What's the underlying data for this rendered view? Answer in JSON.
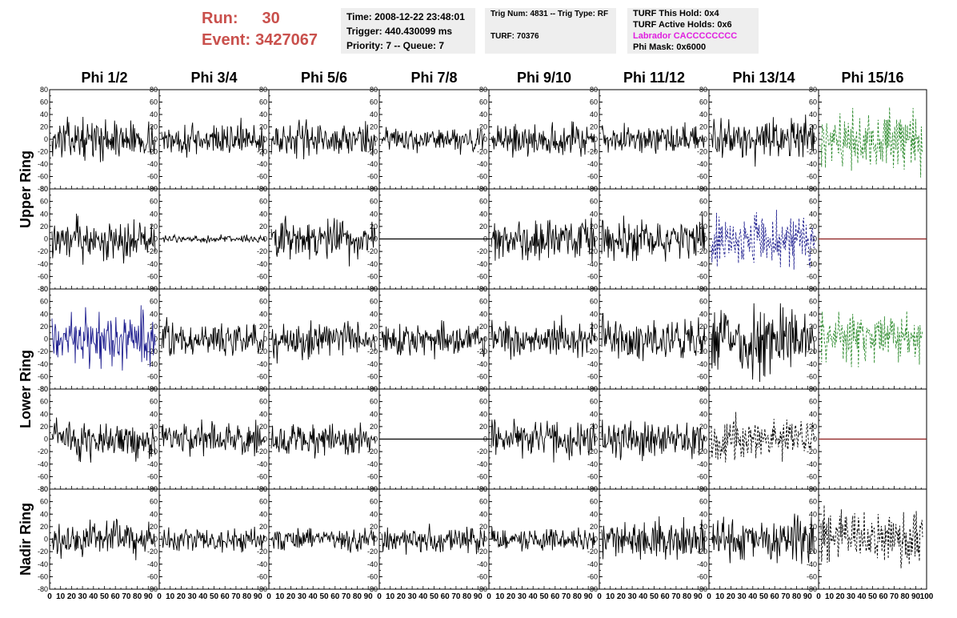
{
  "header": {
    "run_label": "Run:",
    "run_value": "30",
    "event_label": "Event:",
    "event_value": "3427067",
    "info1": [
      "Time: 2008-12-22 23:48:01",
      "Trigger: 440.430099 ms",
      "Priority: 7 -- Queue: 7"
    ],
    "info2": [
      "Trig Num: 4831 -- Trig Type: RF",
      "TURF: 70376"
    ],
    "info3": [
      "TURF This Hold: 0x4",
      "TURF Active Holds: 0x6",
      "Labrador CACCCCCCCC",
      "Phi Mask: 0x6000"
    ],
    "colors": {
      "run": "#c9504c",
      "labrador": "#e020e0"
    }
  },
  "chart_data": {
    "type": "line",
    "columns": [
      "Phi 1/2",
      "Phi 3/4",
      "Phi 5/6",
      "Phi 7/8",
      "Phi 9/10",
      "Phi 11/12",
      "Phi 13/14",
      "Phi 15/16"
    ],
    "ring_labels": [
      "Upper Ring",
      "Lower Ring",
      "Nadir Ring"
    ],
    "ylim": [
      -80,
      80
    ],
    "yticks": [
      "80",
      "60",
      "40",
      "20",
      "0",
      "-20",
      "-40",
      "-60",
      "-80"
    ],
    "xlim": [
      0,
      100
    ],
    "xticks": [
      "0",
      "10",
      "20",
      "30",
      "40",
      "50",
      "60",
      "70",
      "80",
      "90",
      "100"
    ],
    "colors": {
      "normal": "#000000",
      "blue": "#1f1f8f",
      "green": "#2e8b2e",
      "flat_red": "#8b1a1a"
    },
    "series": [
      {
        "row": 0,
        "col": 0,
        "style": "normal",
        "amplitude": 16
      },
      {
        "row": 0,
        "col": 1,
        "style": "normal",
        "amplitude": 14
      },
      {
        "row": 0,
        "col": 2,
        "style": "normal",
        "amplitude": 14
      },
      {
        "row": 0,
        "col": 3,
        "style": "normal",
        "amplitude": 10
      },
      {
        "row": 0,
        "col": 4,
        "style": "normal",
        "amplitude": 14
      },
      {
        "row": 0,
        "col": 5,
        "style": "normal",
        "amplitude": 12
      },
      {
        "row": 0,
        "col": 6,
        "style": "normal",
        "amplitude": 18
      },
      {
        "row": 0,
        "col": 7,
        "style": "green",
        "amplitude": 26
      },
      {
        "row": 1,
        "col": 0,
        "style": "normal",
        "amplitude": 18
      },
      {
        "row": 1,
        "col": 1,
        "style": "normal",
        "amplitude": 3
      },
      {
        "row": 1,
        "col": 2,
        "style": "normal",
        "amplitude": 18
      },
      {
        "row": 1,
        "col": 3,
        "style": "flat",
        "amplitude": 0
      },
      {
        "row": 1,
        "col": 4,
        "style": "normal",
        "amplitude": 18
      },
      {
        "row": 1,
        "col": 5,
        "style": "normal",
        "amplitude": 16
      },
      {
        "row": 1,
        "col": 6,
        "style": "blue_dash",
        "amplitude": 22
      },
      {
        "row": 1,
        "col": 7,
        "style": "flat_red",
        "amplitude": 0
      },
      {
        "row": 2,
        "col": 0,
        "style": "blue",
        "amplitude": 22
      },
      {
        "row": 2,
        "col": 1,
        "style": "normal",
        "amplitude": 14
      },
      {
        "row": 2,
        "col": 2,
        "style": "normal",
        "amplitude": 16
      },
      {
        "row": 2,
        "col": 3,
        "style": "normal",
        "amplitude": 14
      },
      {
        "row": 2,
        "col": 4,
        "style": "normal",
        "amplitude": 16
      },
      {
        "row": 2,
        "col": 5,
        "style": "normal",
        "amplitude": 18
      },
      {
        "row": 2,
        "col": 6,
        "style": "normal",
        "amplitude": 28
      },
      {
        "row": 2,
        "col": 7,
        "style": "green",
        "amplitude": 22
      },
      {
        "row": 3,
        "col": 0,
        "style": "normal",
        "amplitude": 16
      },
      {
        "row": 3,
        "col": 1,
        "style": "normal",
        "amplitude": 14
      },
      {
        "row": 3,
        "col": 2,
        "style": "normal",
        "amplitude": 14
      },
      {
        "row": 3,
        "col": 3,
        "style": "flat",
        "amplitude": 0
      },
      {
        "row": 3,
        "col": 4,
        "style": "normal",
        "amplitude": 16
      },
      {
        "row": 3,
        "col": 5,
        "style": "normal",
        "amplitude": 16
      },
      {
        "row": 3,
        "col": 6,
        "style": "dash",
        "amplitude": 18
      },
      {
        "row": 3,
        "col": 7,
        "style": "flat_red",
        "amplitude": 0
      },
      {
        "row": 4,
        "col": 0,
        "style": "normal",
        "amplitude": 14
      },
      {
        "row": 4,
        "col": 1,
        "style": "normal",
        "amplitude": 10
      },
      {
        "row": 4,
        "col": 2,
        "style": "normal",
        "amplitude": 10
      },
      {
        "row": 4,
        "col": 3,
        "style": "normal",
        "amplitude": 12
      },
      {
        "row": 4,
        "col": 4,
        "style": "normal",
        "amplitude": 10
      },
      {
        "row": 4,
        "col": 5,
        "style": "normal",
        "amplitude": 16
      },
      {
        "row": 4,
        "col": 6,
        "style": "normal",
        "amplitude": 18
      },
      {
        "row": 4,
        "col": 7,
        "style": "dash",
        "amplitude": 22
      }
    ]
  }
}
